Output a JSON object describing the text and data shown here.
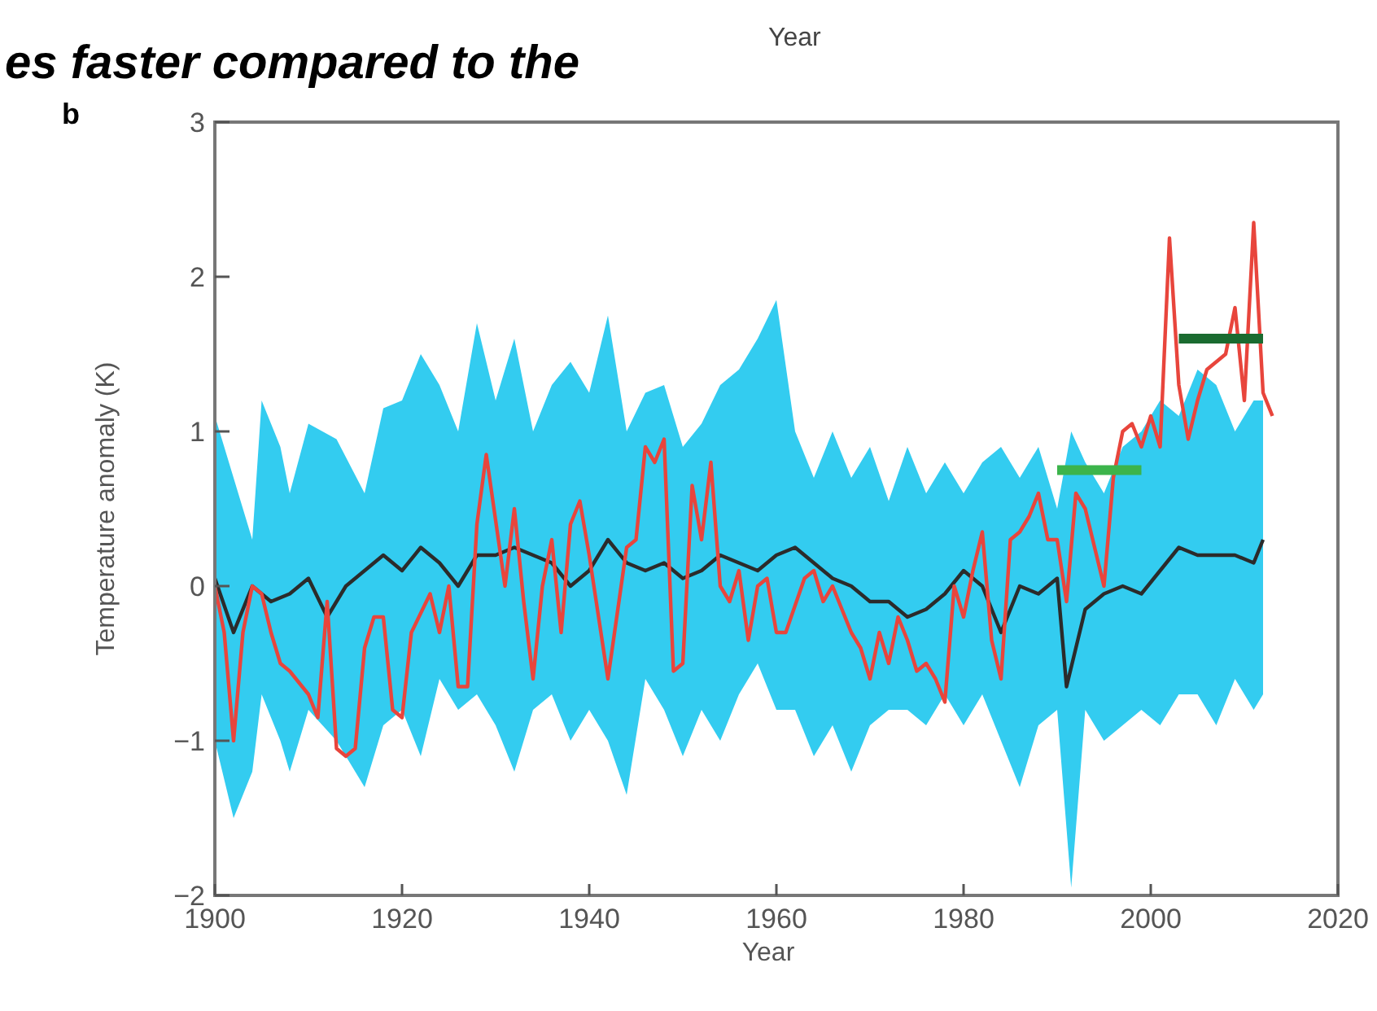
{
  "chart_data": {
    "type": "line",
    "title": "b",
    "xlabel": "Year",
    "ylabel": "Temperature anomaly (K)",
    "annotations": [
      "es faster compared to the",
      "Year"
    ],
    "xlim": [
      1900,
      2020
    ],
    "xticks": [
      1900,
      1920,
      1940,
      1960,
      1980,
      2000,
      2020
    ],
    "ylim": [
      -2,
      3
    ],
    "yticks": [
      -2,
      -1,
      0,
      1,
      2,
      3
    ],
    "grid": false,
    "series": [
      {
        "type": "area",
        "color": "#33ccf0",
        "values": [
          null,
          null,
          null,
          null,
          null,
          null,
          null,
          null,
          null,
          null,
          null,
          null,
          null,
          null,
          null,
          null,
          null,
          null,
          null,
          null,
          null,
          null,
          null,
          null,
          null,
          null,
          null,
          null,
          null,
          null,
          null,
          null,
          null,
          null,
          null,
          null,
          null,
          null,
          null,
          null,
          null,
          null,
          null,
          null,
          null,
          null,
          null,
          null,
          null,
          null,
          null,
          null,
          null,
          null,
          null,
          null,
          null,
          null
        ],
        "x": [
          1900,
          1902,
          1904,
          1905,
          1907,
          1908,
          1910,
          1913,
          1916,
          1918,
          1920,
          1922,
          1924,
          1926,
          1928,
          1930,
          1932,
          1934,
          1936,
          1938,
          1940,
          1942,
          1944,
          1946,
          1948,
          1950,
          1952,
          1954,
          1956,
          1958,
          1960,
          1962,
          1964,
          1966,
          1968,
          1970,
          1972,
          1974,
          1976,
          1978,
          1980,
          1982,
          1984,
          1986,
          1988,
          1990,
          1991.5,
          1993,
          1995,
          1997,
          1999,
          2001,
          2003,
          2005,
          2007,
          2009,
          2011,
          2012
        ],
        "upper": [
          1.1,
          0.7,
          0.3,
          1.2,
          0.9,
          0.6,
          1.05,
          0.95,
          0.6,
          1.15,
          1.2,
          1.5,
          1.3,
          1.0,
          1.7,
          1.2,
          1.6,
          1.0,
          1.3,
          1.45,
          1.25,
          1.75,
          1.0,
          1.25,
          1.3,
          0.9,
          1.05,
          1.3,
          1.4,
          1.6,
          1.85,
          1.0,
          0.7,
          1.0,
          0.7,
          0.9,
          0.55,
          0.9,
          0.6,
          0.8,
          0.6,
          0.8,
          0.9,
          0.7,
          0.9,
          0.5,
          1.0,
          0.8,
          0.6,
          0.9,
          1.0,
          1.2,
          1.1,
          1.4,
          1.3,
          1.0,
          1.2,
          1.2
        ],
        "lower": [
          -1.0,
          -1.5,
          -1.2,
          -0.7,
          -1.0,
          -1.2,
          -0.8,
          -1.0,
          -1.3,
          -0.9,
          -0.8,
          -1.1,
          -0.6,
          -0.8,
          -0.7,
          -0.9,
          -1.2,
          -0.8,
          -0.7,
          -1.0,
          -0.8,
          -1.0,
          -1.35,
          -0.6,
          -0.8,
          -1.1,
          -0.8,
          -1.0,
          -0.7,
          -0.5,
          -0.8,
          -0.8,
          -1.1,
          -0.9,
          -1.2,
          -0.9,
          -0.8,
          -0.8,
          -0.9,
          -0.7,
          -0.9,
          -0.7,
          -1.0,
          -1.3,
          -0.9,
          -0.8,
          -1.95,
          -0.8,
          -1.0,
          -0.9,
          -0.8,
          -0.9,
          -0.7,
          -0.7,
          -0.9,
          -0.6,
          -0.8,
          -0.7
        ]
      },
      {
        "color": "#2b2b2b",
        "x": [
          1900,
          1902,
          1904,
          1906,
          1908,
          1910,
          1912,
          1914,
          1916,
          1918,
          1920,
          1922,
          1924,
          1926,
          1928,
          1930,
          1932,
          1934,
          1936,
          1938,
          1940,
          1942,
          1944,
          1946,
          1948,
          1950,
          1952,
          1954,
          1956,
          1958,
          1960,
          1962,
          1964,
          1966,
          1968,
          1970,
          1972,
          1974,
          1976,
          1978,
          1980,
          1982,
          1984,
          1986,
          1988,
          1990,
          1991,
          1993,
          1995,
          1997,
          1999,
          2001,
          2003,
          2005,
          2007,
          2009,
          2011,
          2012
        ],
        "values": [
          0.05,
          -0.3,
          0.0,
          -0.1,
          -0.05,
          0.05,
          -0.2,
          0.0,
          0.1,
          0.2,
          0.1,
          0.25,
          0.15,
          0.0,
          0.2,
          0.2,
          0.25,
          0.2,
          0.15,
          0.0,
          0.1,
          0.3,
          0.15,
          0.1,
          0.15,
          0.05,
          0.1,
          0.2,
          0.15,
          0.1,
          0.2,
          0.25,
          0.15,
          0.05,
          0.0,
          -0.1,
          -0.1,
          -0.2,
          -0.15,
          -0.05,
          0.1,
          0.0,
          -0.3,
          0.0,
          -0.05,
          0.05,
          -0.65,
          -0.15,
          -0.05,
          0.0,
          -0.05,
          0.1,
          0.25,
          0.2,
          0.2,
          0.2,
          0.15,
          0.3
        ]
      },
      {
        "color": "#e8453c",
        "x": [
          1900,
          1901,
          1902,
          1903,
          1904,
          1905,
          1906,
          1907,
          1908,
          1910,
          1911,
          1912,
          1913,
          1914,
          1915,
          1916,
          1917,
          1918,
          1919,
          1920,
          1921,
          1923,
          1924,
          1925,
          1926,
          1927,
          1928,
          1929,
          1931,
          1932,
          1933,
          1934,
          1935,
          1936,
          1937,
          1938,
          1939,
          1940,
          1941,
          1942,
          1944,
          1945,
          1946,
          1947,
          1948,
          1949,
          1950,
          1951,
          1952,
          1953,
          1954,
          1955,
          1956,
          1957,
          1958,
          1959,
          1960,
          1961,
          1963,
          1964,
          1965,
          1966,
          1967,
          1968,
          1969,
          1970,
          1971,
          1972,
          1973,
          1974,
          1975,
          1976,
          1977,
          1978,
          1979,
          1980,
          1981,
          1982,
          1983,
          1984,
          1985,
          1986,
          1987,
          1988,
          1989,
          1990,
          1991,
          1992,
          1993,
          1994,
          1995,
          1996,
          1997,
          1998,
          1999,
          2000,
          2001,
          2002,
          2003,
          2004,
          2005,
          2006,
          2007,
          2008,
          2009,
          2010,
          2011,
          2012,
          2013
        ],
        "values": [
          0.0,
          -0.3,
          -1.0,
          -0.3,
          0.0,
          -0.05,
          -0.3,
          -0.5,
          -0.55,
          -0.7,
          -0.85,
          -0.1,
          -1.05,
          -1.1,
          -1.05,
          -0.4,
          -0.2,
          -0.2,
          -0.8,
          -0.85,
          -0.3,
          -0.05,
          -0.3,
          0.0,
          -0.65,
          -0.65,
          0.4,
          0.85,
          0.0,
          0.5,
          -0.1,
          -0.6,
          0.0,
          0.3,
          -0.3,
          0.4,
          0.55,
          0.2,
          -0.2,
          -0.6,
          0.25,
          0.3,
          0.9,
          0.8,
          0.95,
          -0.55,
          -0.5,
          0.65,
          0.3,
          0.8,
          0.0,
          -0.1,
          0.1,
          -0.35,
          0.0,
          0.05,
          -0.3,
          -0.3,
          0.05,
          0.1,
          -0.1,
          0.0,
          -0.15,
          -0.3,
          -0.4,
          -0.6,
          -0.3,
          -0.5,
          -0.2,
          -0.35,
          -0.55,
          -0.5,
          -0.6,
          -0.75,
          0.0,
          -0.2,
          0.1,
          0.35,
          -0.35,
          -0.6,
          0.3,
          0.35,
          0.45,
          0.6,
          0.3,
          0.3,
          -0.1,
          0.6,
          0.5,
          0.25,
          0.0,
          0.7,
          1.0,
          1.05,
          0.9,
          1.1,
          0.9,
          2.25,
          1.3,
          0.95,
          1.2,
          1.4,
          1.45,
          1.5,
          1.8,
          1.2,
          2.35,
          1.25,
          1.1
        ]
      },
      {
        "color": "#3cb44b",
        "x": [
          1990,
          1999
        ],
        "values": [
          0.75,
          0.75
        ]
      },
      {
        "color": "#1a6b30",
        "x": [
          2003,
          2012
        ],
        "values": [
          1.6,
          1.6
        ]
      }
    ]
  }
}
